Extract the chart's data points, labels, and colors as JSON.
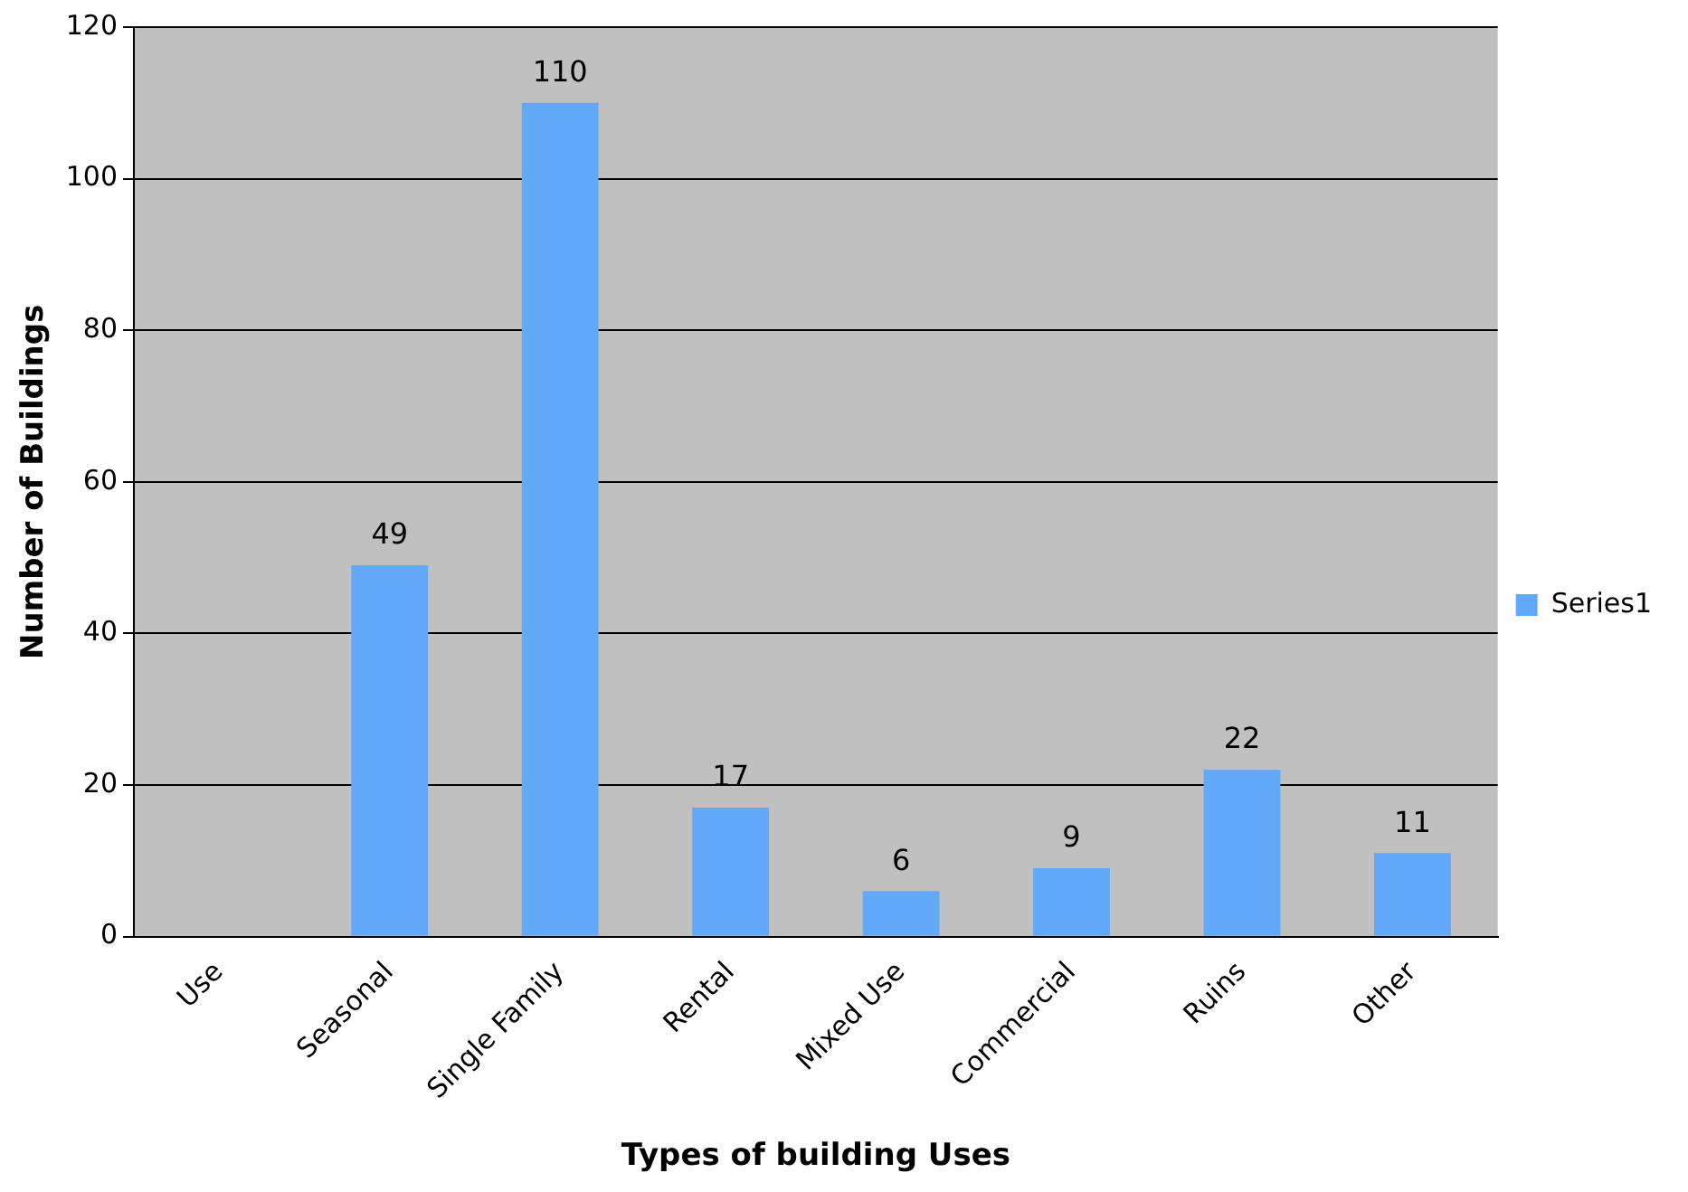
{
  "chart_data": {
    "type": "bar",
    "xlabel": "Types of building Uses",
    "ylabel": "Number of Buildings",
    "categories": [
      "Use",
      "Seasonal",
      "Single Family",
      "Rental",
      "Mixed Use",
      "Commercial",
      "Ruins",
      "Other"
    ],
    "series": [
      {
        "name": "Series1",
        "color": "#62a8f8",
        "values": [
          null,
          49,
          110,
          17,
          6,
          9,
          22,
          11
        ]
      }
    ],
    "ylim": [
      0,
      120
    ],
    "yticks": [
      0,
      20,
      40,
      60,
      80,
      100,
      120
    ],
    "grid": "y",
    "legend": "right",
    "data_labels": true
  }
}
